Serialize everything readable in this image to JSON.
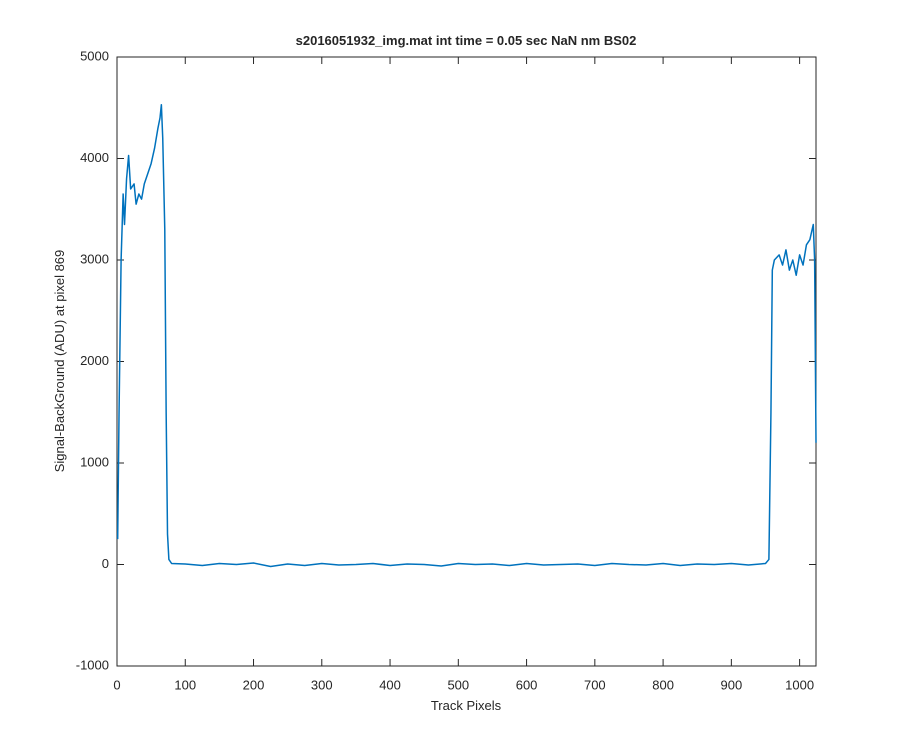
{
  "chart_data": {
    "type": "line",
    "title": "s2016051932_img.mat int time = 0.05 sec  NaN nm BS02",
    "x_label": "Track Pixels",
    "y_label": "Signal-BackGround (ADU) at pixel 869",
    "x": [
      1,
      3,
      6,
      9,
      11,
      14,
      17,
      20,
      25,
      28,
      32,
      36,
      40,
      45,
      50,
      55,
      60,
      63,
      65,
      67,
      70,
      72,
      74,
      76,
      80,
      100,
      125,
      150,
      175,
      200,
      225,
      250,
      275,
      300,
      325,
      350,
      375,
      400,
      425,
      450,
      475,
      500,
      525,
      550,
      575,
      600,
      625,
      650,
      675,
      700,
      725,
      750,
      775,
      800,
      825,
      850,
      875,
      900,
      925,
      950,
      955,
      958,
      960,
      963,
      970,
      975,
      980,
      985,
      990,
      995,
      1000,
      1005,
      1010,
      1015,
      1020,
      1022,
      1024
    ],
    "series": [
      {
        "name": "signal",
        "color": "#0072bd",
        "values": [
          250,
          1500,
          3000,
          3650,
          3350,
          3800,
          4030,
          3700,
          3750,
          3550,
          3650,
          3600,
          3750,
          3850,
          3950,
          4100,
          4300,
          4400,
          4530,
          4200,
          3300,
          1500,
          300,
          50,
          10,
          5,
          -10,
          10,
          0,
          15,
          -20,
          5,
          -10,
          10,
          -5,
          0,
          10,
          -10,
          5,
          0,
          -15,
          10,
          0,
          5,
          -10,
          10,
          -5,
          0,
          5,
          -10,
          10,
          0,
          -5,
          10,
          -10,
          5,
          0,
          10,
          -5,
          10,
          50,
          1500,
          2900,
          3000,
          3050,
          2950,
          3100,
          2900,
          3000,
          2850,
          3050,
          2950,
          3150,
          3200,
          3350,
          3000,
          1200
        ]
      }
    ],
    "xlim": [
      0,
      1024
    ],
    "xticks": [
      0,
      100,
      200,
      300,
      400,
      500,
      600,
      700,
      800,
      900,
      1000
    ],
    "ylim": [
      -1000,
      5000
    ],
    "yticks": [
      -1000,
      0,
      1000,
      2000,
      3000,
      4000,
      5000
    ]
  }
}
